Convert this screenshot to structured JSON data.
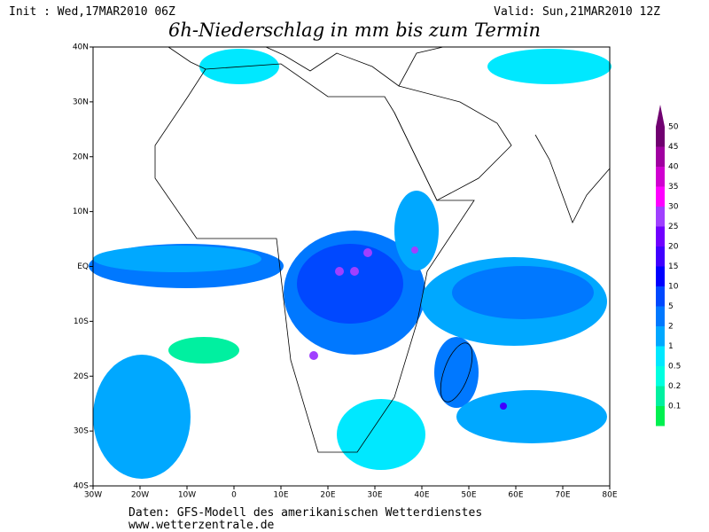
{
  "header": {
    "init": "Init : Wed,17MAR2010 06Z",
    "valid": "Valid: Sun,21MAR2010 12Z",
    "title": "6h-Niederschlag in mm bis zum Termin"
  },
  "axes": {
    "lat_labels": [
      "40N",
      "30N",
      "20N",
      "10N",
      "EQ",
      "10S",
      "20S",
      "30S",
      "40S"
    ],
    "lon_labels": [
      "30W",
      "20W",
      "10W",
      "0",
      "10E",
      "20E",
      "30E",
      "40E",
      "50E",
      "60E",
      "70E",
      "80E"
    ]
  },
  "legend": {
    "levels": [
      0.1,
      0.2,
      0.5,
      1,
      2,
      5,
      10,
      15,
      20,
      25,
      30,
      35,
      40,
      45,
      50
    ],
    "colors": [
      "#00f050",
      "#00f0a0",
      "#00ffe0",
      "#00e8ff",
      "#00a8ff",
      "#0078ff",
      "#0048ff",
      "#0000ff",
      "#4000ff",
      "#7000ff",
      "#a040ff",
      "#ff00ff",
      "#d000d0",
      "#a000a0",
      "#700070"
    ]
  },
  "footer": {
    "source": "Daten: GFS-Modell des amerikanischen Wetterdienstes",
    "url": "www.wetterzentrale.de"
  }
}
